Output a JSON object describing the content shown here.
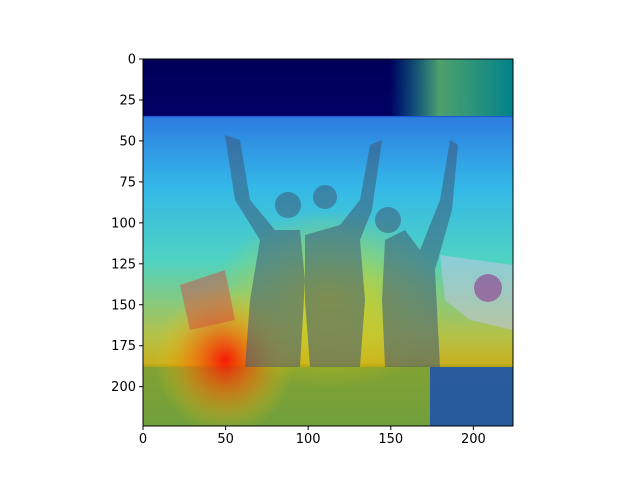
{
  "chart_data": {
    "type": "heatmap",
    "description_kind": "image with attention heatmap overlay",
    "xlim": [
      0,
      224
    ],
    "ylim": [
      224,
      0
    ],
    "x_ticks": [
      0,
      50,
      100,
      150,
      200
    ],
    "y_ticks": [
      0,
      25,
      50,
      75,
      100,
      125,
      150,
      175,
      200
    ],
    "x_tick_labels": [
      "0",
      "50",
      "100",
      "150",
      "200"
    ],
    "y_tick_labels": [
      "0",
      "25",
      "50",
      "75",
      "100",
      "125",
      "150",
      "175",
      "200"
    ],
    "colormap": "jet",
    "overlay_alpha": 0.5,
    "grid": false,
    "title": "",
    "xlabel": "",
    "ylabel": ""
  }
}
